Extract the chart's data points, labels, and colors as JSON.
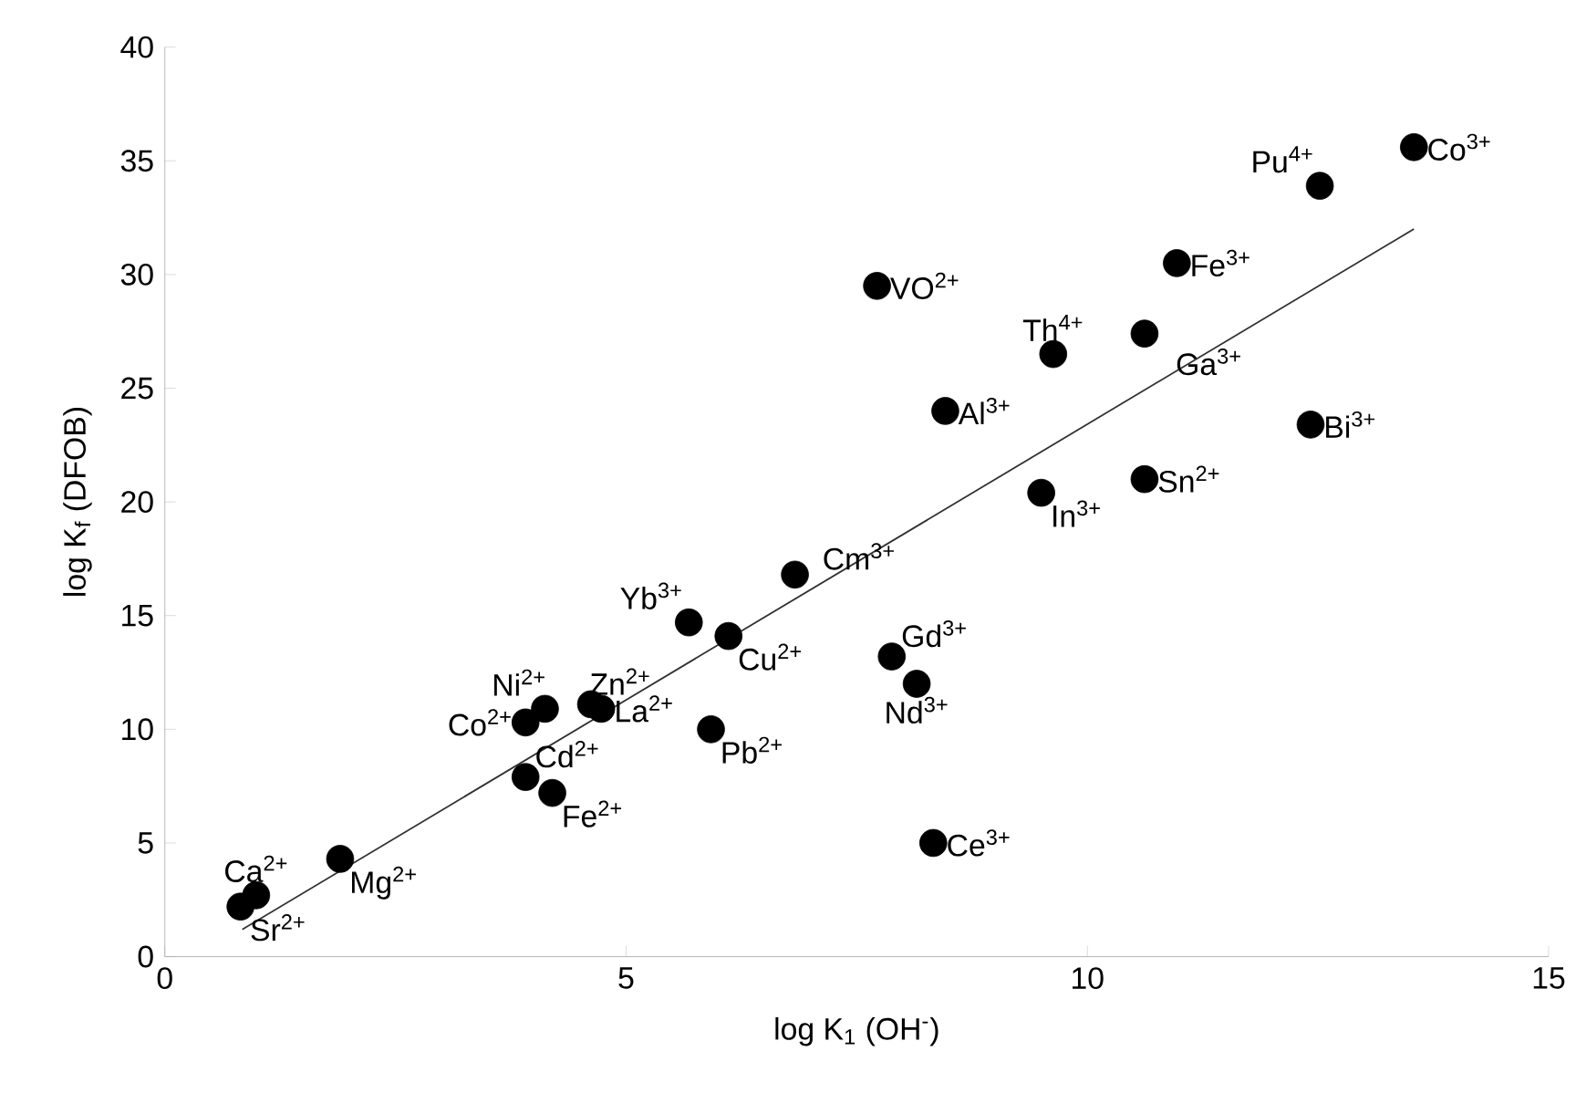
{
  "chart_data": {
    "type": "scatter",
    "xlabel": "log K$_{1}$ (OH$^{-}$)",
    "ylabel": "log K$_{f}$ (DFOB)",
    "xlim": [
      0,
      15
    ],
    "ylim": [
      0,
      40
    ],
    "xticks": [
      0,
      5,
      10,
      15
    ],
    "yticks": [
      0,
      5,
      10,
      15,
      20,
      25,
      30,
      35,
      40
    ],
    "grid": false,
    "series": [
      {
        "marker": "circle",
        "color": "#000000",
        "x": [
          13.54,
          12.52,
          10.97,
          7.72,
          9.63,
          10.62,
          8.46,
          12.42,
          10.62,
          9.5,
          5.68,
          6.83,
          6.11,
          7.88,
          8.15,
          4.12,
          3.91,
          4.62,
          4.73,
          5.92,
          3.91,
          4.2,
          8.33,
          1.9,
          0.99,
          0.82
        ],
        "values": [
          35.6,
          33.9,
          30.5,
          29.5,
          26.5,
          27.4,
          24.0,
          23.4,
          21.0,
          20.4,
          14.7,
          16.8,
          14.1,
          13.2,
          12.0,
          10.9,
          10.3,
          11.1,
          10.9,
          10.0,
          7.9,
          7.2,
          5.0,
          4.3,
          2.7,
          2.2
        ]
      },
      {
        "type": "line",
        "marker": "none",
        "color": "#303030",
        "x": [
          0.84,
          13.54
        ],
        "values": [
          1.2,
          32.0
        ]
      }
    ],
    "annotations": [
      {
        "text": "Co$^{3+}$",
        "x": 13.54,
        "y": 35.6
      },
      {
        "text": "Pu$^{4+}$",
        "x": 12.52,
        "y": 33.9
      },
      {
        "text": "Fe$^{3+}$",
        "x": 10.97,
        "y": 30.5
      },
      {
        "text": "VO$^{2+}$",
        "x": 7.72,
        "y": 29.5
      },
      {
        "text": "Th$^{4+}$",
        "x": 9.63,
        "y": 26.5
      },
      {
        "text": "Ga$^{3+}$",
        "x": 10.62,
        "y": 27.4
      },
      {
        "text": "Al$^{3+}$",
        "x": 8.46,
        "y": 24.0
      },
      {
        "text": "Bi$^{3+}$",
        "x": 12.42,
        "y": 23.4
      },
      {
        "text": "Sn$^{2+}$",
        "x": 10.62,
        "y": 21.0
      },
      {
        "text": "In$^{3+}$",
        "x": 9.5,
        "y": 20.4
      },
      {
        "text": "Yb$^{3+}$",
        "x": 5.68,
        "y": 14.7
      },
      {
        "text": "Cm$^{3+}$",
        "x": 6.83,
        "y": 16.8
      },
      {
        "text": "Cu$^{2+}$",
        "x": 6.11,
        "y": 14.1
      },
      {
        "text": "Gd$^{3+}$",
        "x": 7.88,
        "y": 13.2
      },
      {
        "text": "Nd$^{3+}$",
        "x": 8.15,
        "y": 12.0
      },
      {
        "text": "Ni$^{2+}$",
        "x": 4.12,
        "y": 10.9
      },
      {
        "text": "Co$^{2+}$",
        "x": 3.91,
        "y": 10.3
      },
      {
        "text": "Zn$^{2+}$",
        "x": 4.62,
        "y": 11.1
      },
      {
        "text": "La$^{2+}$",
        "x": 4.73,
        "y": 10.9
      },
      {
        "text": "Pb$^{2+}$",
        "x": 5.92,
        "y": 10.0
      },
      {
        "text": "Cd$^{2+}$",
        "x": 3.91,
        "y": 7.9
      },
      {
        "text": "Fe$^{2+}$",
        "x": 4.2,
        "y": 7.2
      },
      {
        "text": "Ce$^{3+}$",
        "x": 8.33,
        "y": 5.0
      },
      {
        "text": "Mg$^{2+}$",
        "x": 1.9,
        "y": 4.3
      },
      {
        "text": "Ca$^{2+}$",
        "x": 0.99,
        "y": 2.7
      },
      {
        "text": "Sr$^{2+}$",
        "x": 0.82,
        "y": 2.2
      }
    ]
  }
}
